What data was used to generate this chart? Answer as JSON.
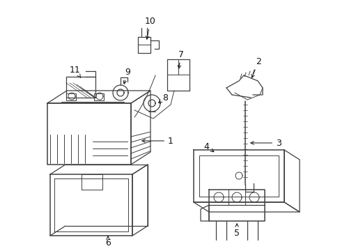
{
  "bg_color": "#ffffff",
  "line_color": "#404040",
  "text_color": "#111111",
  "figsize": [
    4.89,
    3.6
  ],
  "dpi": 100
}
